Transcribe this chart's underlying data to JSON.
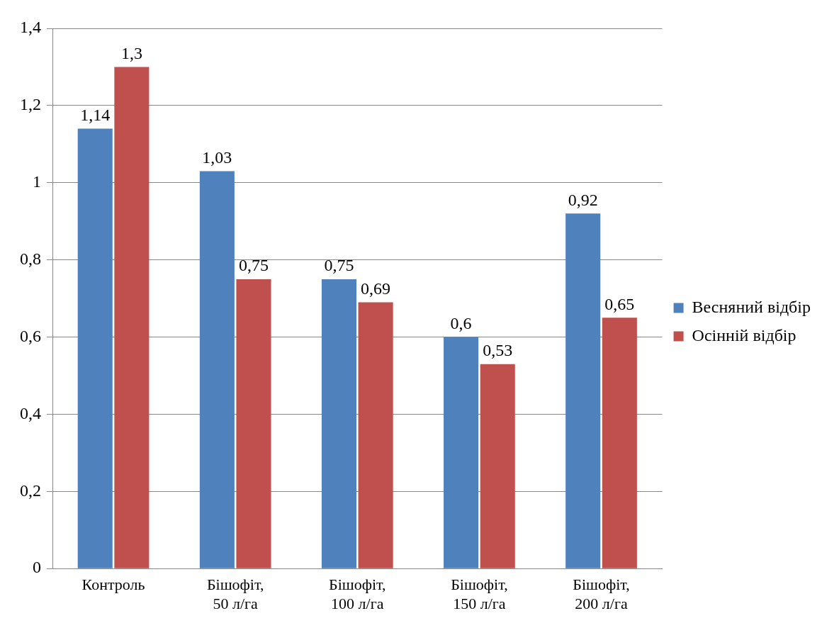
{
  "chart_data": {
    "type": "bar",
    "categories": [
      "Контроль",
      "Бішофіт, 50 л/га",
      "Бішофіт, 100 л/га",
      "Бішофіт, 150 л/га",
      "Бішофіт, 200 л/га"
    ],
    "series": [
      {
        "name": "Весняний відбір",
        "color": "#4f81bd",
        "values": [
          1.14,
          1.03,
          0.75,
          0.6,
          0.92
        ],
        "value_labels": [
          "1,14",
          "1,03",
          "0,75",
          "0,6",
          "0,92"
        ]
      },
      {
        "name": "Осінній відбір",
        "color": "#c0504d",
        "values": [
          1.3,
          0.75,
          0.69,
          0.53,
          0.65
        ],
        "value_labels": [
          "1,3",
          "0,75",
          "0,69",
          "0,53",
          "0,65"
        ]
      }
    ],
    "ylim": [
      0,
      1.4
    ],
    "yticks": [
      0,
      {
        "value": 0.2,
        "label": "0,2"
      },
      {
        "value": 0.4,
        "label": "0,4"
      },
      {
        "value": 0.6,
        "label": "0,6"
      },
      {
        "value": 0.8,
        "label": "0,8"
      },
      1,
      {
        "value": 1.2,
        "label": "1,2"
      },
      {
        "value": 1.4,
        "label": "1,4"
      }
    ],
    "grid": "y",
    "legend": "right"
  }
}
